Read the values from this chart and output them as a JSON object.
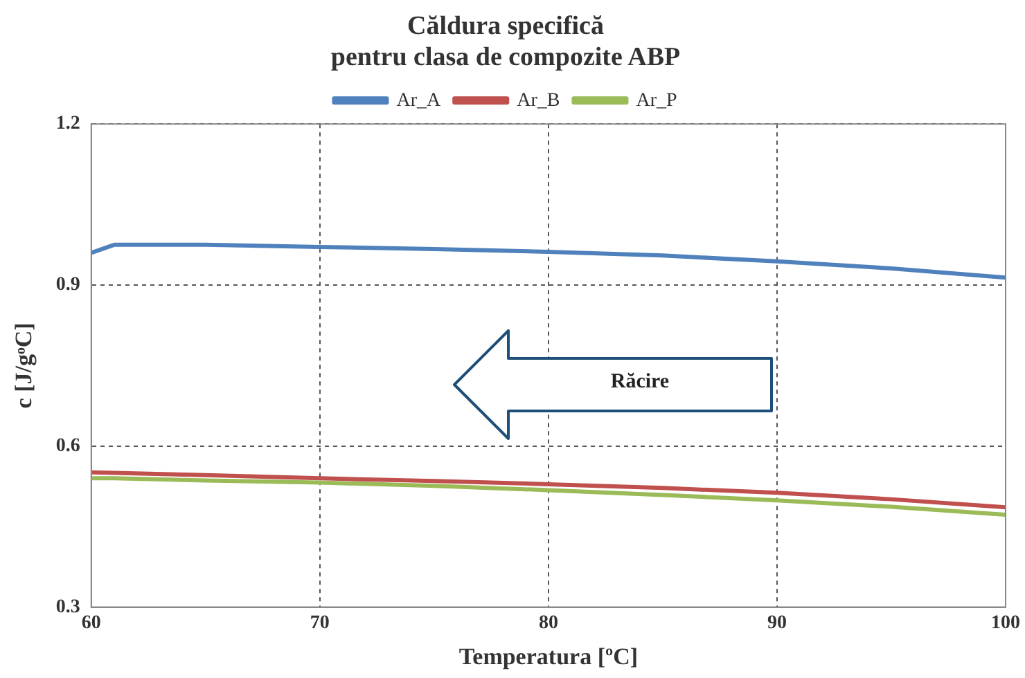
{
  "chart_data": {
    "type": "line",
    "title": "Căldura specifică\npentru clasa de compozite ABP",
    "xlabel": "Temperatura [ºC]",
    "ylabel": "c [J/gᵒC]",
    "x": [
      60,
      61,
      65,
      70,
      75,
      80,
      85,
      90,
      95,
      100
    ],
    "series": [
      {
        "name": "Ar_A",
        "color": "#4f81bd",
        "values": [
          0.96,
          0.975,
          0.975,
          0.971,
          0.967,
          0.962,
          0.955,
          0.944,
          0.931,
          0.914
        ]
      },
      {
        "name": "Ar_B",
        "color": "#c0504d",
        "values": [
          0.551,
          0.55,
          0.546,
          0.54,
          0.535,
          0.529,
          0.522,
          0.513,
          0.501,
          0.486
        ]
      },
      {
        "name": "Ar_P",
        "color": "#9bbb59",
        "values": [
          0.54,
          0.54,
          0.536,
          0.532,
          0.526,
          0.518,
          0.509,
          0.499,
          0.487,
          0.472
        ]
      }
    ],
    "xlim": [
      60,
      100
    ],
    "xticks": [
      60,
      70,
      80,
      90,
      100
    ],
    "ylim": [
      0.3,
      1.2
    ],
    "yticks": [
      0.3,
      0.6,
      0.9,
      1.2
    ],
    "grid": true,
    "legend": "top",
    "marker": "none",
    "line_style": "solid",
    "annotations": [
      "Răcire"
    ]
  }
}
